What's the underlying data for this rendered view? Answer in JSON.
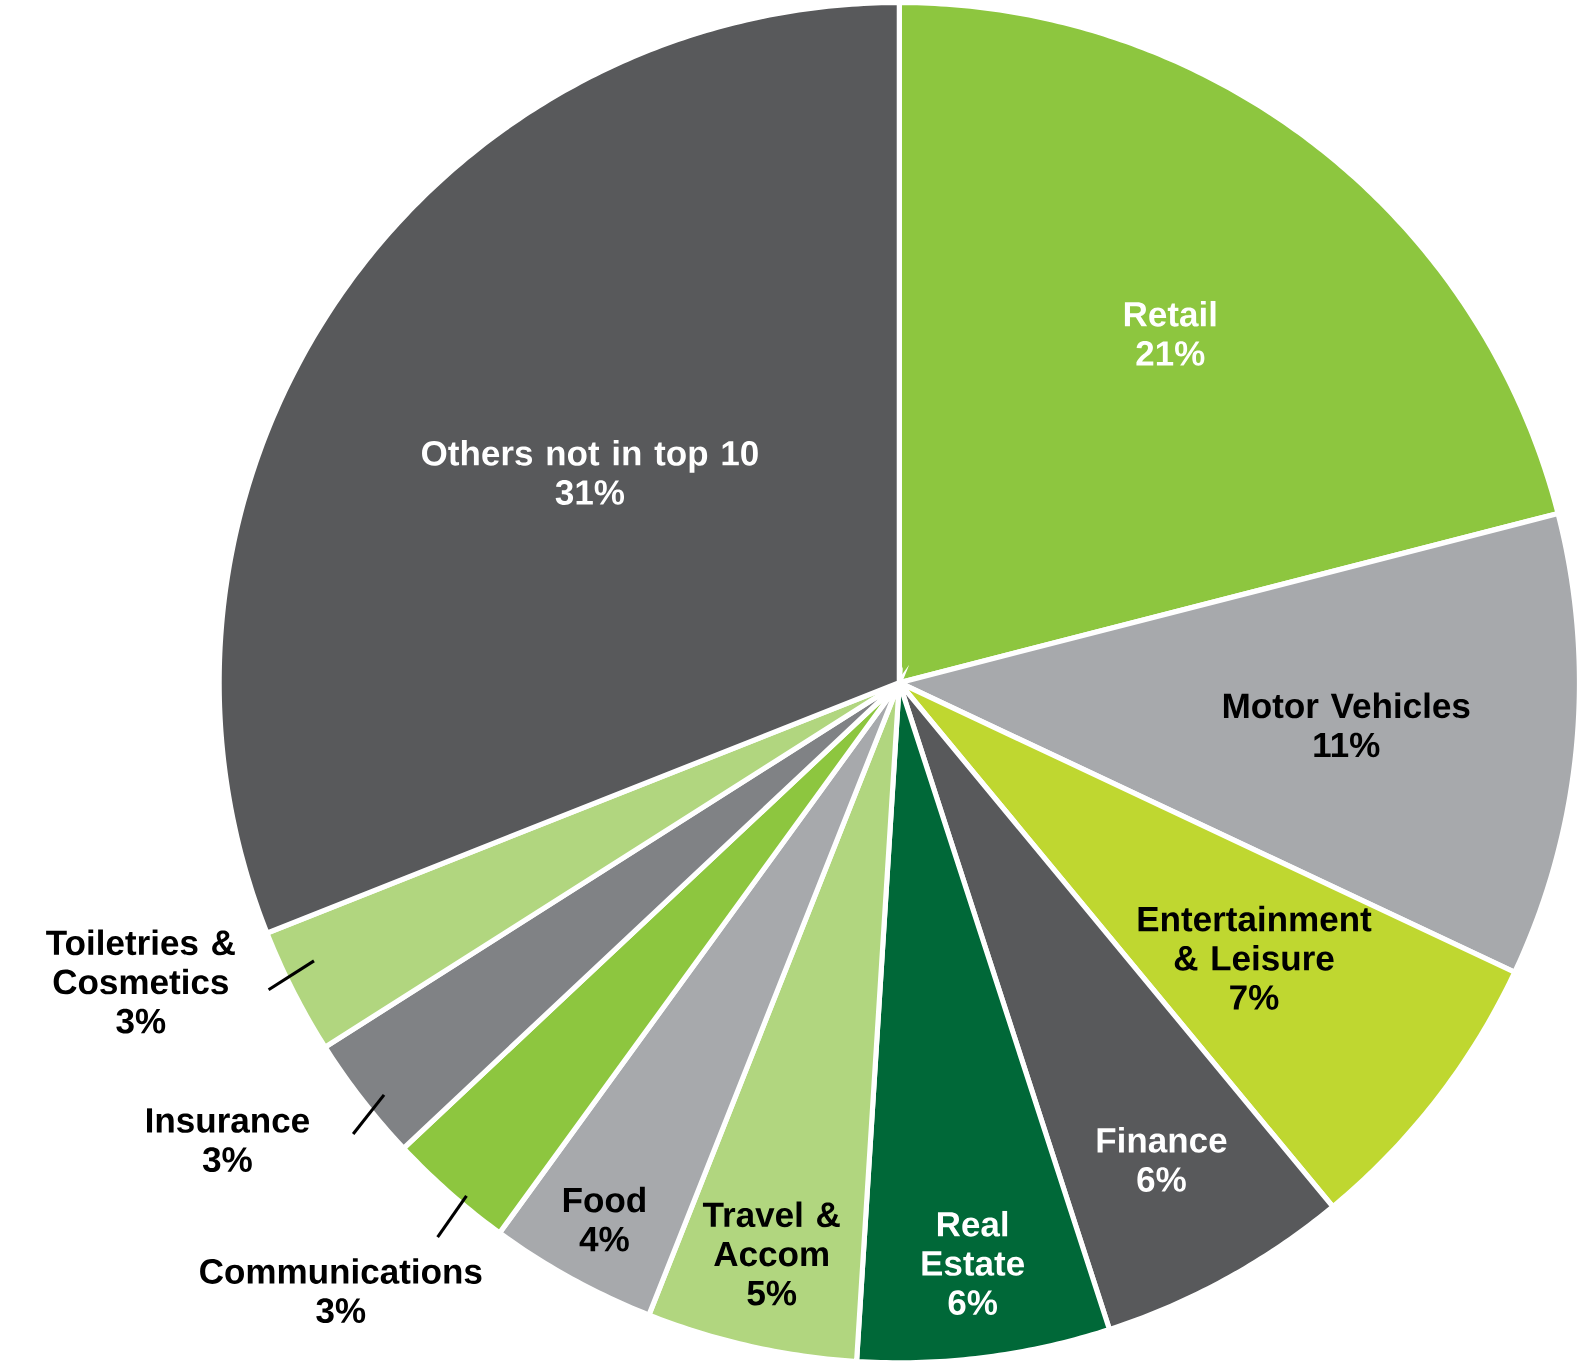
{
  "chart_data": {
    "type": "pie",
    "categories": [
      "Retail",
      "Motor Vehicles",
      "Entertainment & Leisure",
      "Finance",
      "Real Estate",
      "Travel & Accom",
      "Food",
      "Communications",
      "Insurance",
      "Toiletries & Cosmetics",
      "Others not in top 10"
    ],
    "values": [
      21,
      11,
      7,
      6,
      6,
      5,
      4,
      3,
      3,
      3,
      31
    ],
    "value_labels": [
      "21%",
      "11%",
      "7%",
      "6%",
      "6%",
      "5%",
      "4%",
      "3%",
      "3%",
      "3%",
      "31%"
    ],
    "colors": [
      "#8dc63f",
      "#a7a9ac",
      "#bfd730",
      "#58595b",
      "#006838",
      "#b1d67f",
      "#a7a9ac",
      "#8dc63f",
      "#808285",
      "#b1d67f",
      "#58595b"
    ]
  }
}
